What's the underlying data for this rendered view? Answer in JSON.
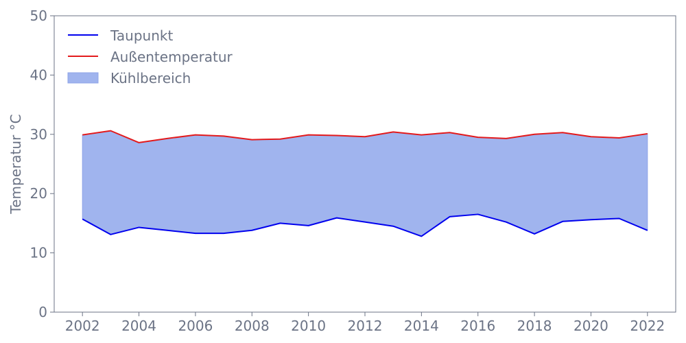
{
  "colors": {
    "taupunkt": "#0000ee",
    "aussentemperatur": "#e31a1c",
    "kuehlbereich": "#a0b4ee",
    "axis": "#6b7385",
    "text": "#6b7385"
  },
  "chart_data": {
    "type": "area",
    "title": "",
    "xlabel": "",
    "ylabel": "Temperatur °C",
    "xlim": [
      2001,
      2023
    ],
    "ylim": [
      0,
      50
    ],
    "grid": false,
    "legend_position": "top-left",
    "x_ticks": [
      2002,
      2004,
      2006,
      2008,
      2010,
      2012,
      2014,
      2016,
      2018,
      2020,
      2022
    ],
    "y_ticks": [
      0,
      10,
      20,
      30,
      40,
      50
    ],
    "x": [
      2002,
      2003,
      2004,
      2005,
      2006,
      2007,
      2008,
      2009,
      2010,
      2011,
      2012,
      2013,
      2014,
      2015,
      2016,
      2017,
      2018,
      2019,
      2020,
      2021,
      2022
    ],
    "series": [
      {
        "name": "Taupunkt",
        "type": "line",
        "color": "#0000ee",
        "values": [
          15.7,
          13.1,
          14.3,
          13.8,
          13.3,
          13.3,
          13.8,
          15.0,
          14.6,
          15.9,
          15.2,
          14.5,
          12.8,
          16.1,
          16.5,
          15.2,
          13.2,
          15.3,
          15.6,
          15.8,
          13.8
        ]
      },
      {
        "name": "Außentemperatur",
        "type": "line",
        "color": "#e31a1c",
        "values": [
          29.9,
          30.6,
          28.6,
          29.3,
          29.9,
          29.7,
          29.1,
          29.2,
          29.9,
          29.8,
          29.6,
          30.4,
          29.9,
          30.3,
          29.5,
          29.3,
          30.0,
          30.3,
          29.6,
          29.4,
          30.1
        ]
      },
      {
        "name": "Kühlbereich",
        "type": "fill_between",
        "color": "#a0b4ee",
        "between": [
          "Taupunkt",
          "Außentemperatur"
        ]
      }
    ]
  }
}
